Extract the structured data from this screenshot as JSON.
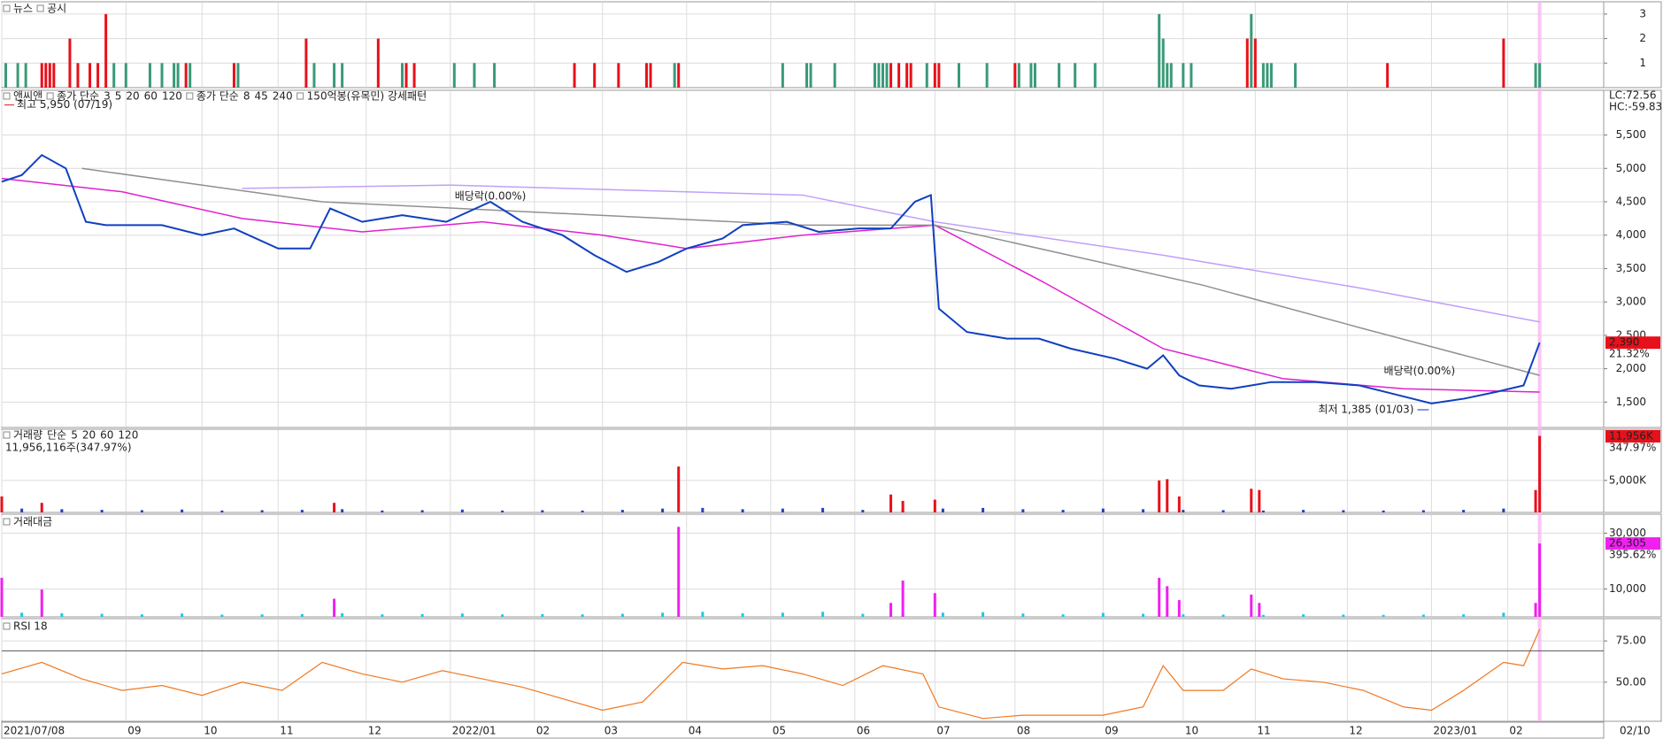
{
  "x_axis": {
    "xlim": [
      0,
      400
    ],
    "xticks": [
      {
        "value": 0,
        "label": "2021/07/08"
      },
      {
        "value": 31,
        "label": "09"
      },
      {
        "value": 50,
        "label": "10"
      },
      {
        "value": 69,
        "label": "11"
      },
      {
        "value": 91,
        "label": "12"
      },
      {
        "value": 112,
        "label": "2022/01"
      },
      {
        "value": 133,
        "label": "02"
      },
      {
        "value": 150,
        "label": "03"
      },
      {
        "value": 171,
        "label": "04"
      },
      {
        "value": 192,
        "label": "05"
      },
      {
        "value": 213,
        "label": "06"
      },
      {
        "value": 233,
        "label": "07"
      },
      {
        "value": 253,
        "label": "08"
      },
      {
        "value": 275,
        "label": "09"
      },
      {
        "value": 295,
        "label": "10"
      },
      {
        "value": 313,
        "label": "11"
      },
      {
        "value": 336,
        "label": "12"
      },
      {
        "value": 357,
        "label": "2023/01"
      },
      {
        "value": 376,
        "label": "02"
      }
    ],
    "current_date": "02/10"
  },
  "news_panel": {
    "ylim": [
      0,
      3.5
    ],
    "yticks": [
      1,
      2,
      3
    ],
    "series": [
      {
        "name": "뉴스",
        "color": "#3a9a78",
        "x": [
          1,
          4,
          6,
          28,
          31,
          37,
          40,
          43,
          44,
          47,
          59,
          78,
          83,
          85,
          100,
          113,
          118,
          123,
          168,
          195,
          201,
          202,
          208,
          218,
          219,
          220,
          221,
          231,
          239,
          246,
          254,
          257,
          258,
          264,
          268,
          273,
          289,
          290,
          291,
          292,
          295,
          297,
          312,
          315,
          316,
          317,
          323,
          383,
          384
        ],
        "values": [
          1,
          1,
          1,
          1,
          1,
          1,
          1,
          1,
          1,
          1,
          1,
          1,
          1,
          1,
          1,
          1,
          1,
          1,
          1,
          1,
          1,
          1,
          1,
          1,
          1,
          1,
          1,
          1,
          1,
          1,
          1,
          1,
          1,
          1,
          1,
          1,
          3,
          2,
          1,
          1,
          1,
          1,
          3,
          1,
          1,
          1,
          1,
          1,
          1
        ]
      },
      {
        "name": "공시",
        "color": "#e8101a",
        "x": [
          10,
          11,
          12,
          13,
          17,
          19,
          22,
          24,
          26,
          46,
          58,
          76,
          94,
          101,
          103,
          143,
          148,
          154,
          161,
          162,
          169,
          222,
          224,
          226,
          227,
          233,
          234,
          253,
          311,
          313,
          346,
          375
        ],
        "values": [
          1,
          1,
          1,
          1,
          2,
          1,
          1,
          1,
          3,
          1,
          1,
          2,
          2,
          1,
          1,
          1,
          1,
          1,
          1,
          1,
          1,
          1,
          1,
          1,
          1,
          1,
          1,
          1,
          2,
          2,
          1,
          2
        ]
      }
    ]
  },
  "price_panel": {
    "title": "앤씨앤",
    "legend": [
      {
        "label": "종가 단순",
        "items": [
          {
            "name": "3",
            "color": "#10106a"
          },
          {
            "name": "5",
            "color": "#1040d0"
          },
          {
            "name": "20",
            "color": "#e0a000"
          },
          {
            "name": "60",
            "color": "#20a040"
          },
          {
            "name": "120",
            "color": "#808080"
          }
        ]
      },
      {
        "label": "종가 단순",
        "items": [
          {
            "name": "8",
            "color": "#a01050"
          },
          {
            "name": "45",
            "color": "#e020d0"
          },
          {
            "name": "240",
            "color": "#b890f0"
          }
        ]
      }
    ],
    "pattern": "150억봉(유목민) 강세패턴",
    "lc": "LC:72.56",
    "hc": "HC:-59.83",
    "ylim": [
      1120,
      6170
    ],
    "yticks": [
      {
        "value": 1500,
        "label": "1,500"
      },
      {
        "value": 2000,
        "label": "2,000"
      },
      {
        "value": 2500,
        "label": "2,500"
      },
      {
        "value": 3000,
        "label": "3,000"
      },
      {
        "value": 3500,
        "label": "3,500"
      },
      {
        "value": 4000,
        "label": "4,000"
      },
      {
        "value": 4500,
        "label": "4,500"
      },
      {
        "value": 5000,
        "label": "5,000"
      },
      {
        "value": 5500,
        "label": "5,500"
      }
    ],
    "series": [
      {
        "color": "#1040c0",
        "x": [
          0,
          5,
          10,
          16,
          21,
          26,
          40,
          50,
          58,
          69,
          77,
          82,
          90,
          100,
          111,
          122,
          130,
          140,
          148,
          156,
          164,
          171,
          180,
          185,
          196,
          204,
          214,
          222,
          228,
          232,
          234,
          241,
          251,
          259,
          267,
          278,
          286,
          290,
          294,
          299,
          307,
          312,
          317,
          328,
          339,
          349,
          357,
          365,
          373,
          380,
          384
        ],
        "values": [
          4800,
          4900,
          5200,
          5000,
          4200,
          4150,
          4150,
          4000,
          4100,
          3800,
          3800,
          4400,
          4200,
          4300,
          4200,
          4500,
          4200,
          4000,
          3700,
          3450,
          3600,
          3800,
          3950,
          4150,
          4200,
          4050,
          4100,
          4100,
          4500,
          4600,
          2900,
          2550,
          2450,
          2450,
          2300,
          2150,
          2000,
          2200,
          1900,
          1750,
          1700,
          1750,
          1800,
          1800,
          1750,
          1600,
          1480,
          1550,
          1650,
          1750,
          2390
        ]
      },
      {
        "name": "240",
        "color": "#c0a0f8",
        "x": [
          60,
          112,
          200,
          233,
          290,
          340,
          384
        ],
        "values": [
          4700,
          4750,
          4600,
          4200,
          3700,
          3200,
          2700
        ]
      },
      {
        "name": "120",
        "color": "#909090",
        "x": [
          20,
          80,
          200,
          233,
          300,
          340,
          384
        ],
        "values": [
          5000,
          4500,
          4150,
          4150,
          3250,
          2600,
          1900
        ]
      },
      {
        "name": "45",
        "color": "#e020d0",
        "x": [
          0,
          30,
          60,
          90,
          120,
          150,
          171,
          200,
          233,
          260,
          290,
          320,
          350,
          384
        ],
        "values": [
          4850,
          4650,
          4250,
          4050,
          4200,
          4000,
          3800,
          4000,
          4150,
          3300,
          2300,
          1850,
          1700,
          1650
        ]
      }
    ],
    "annotations": [
      {
        "text": "최고 5,950 (07/19)",
        "x": 0,
        "y": 5950,
        "color": "#e8101a"
      },
      {
        "text": "최저 1,385 (01/03)",
        "x": 357,
        "y": 1385,
        "color": "#1030c0"
      },
      {
        "text": "배당락(0.00%)",
        "x": 122,
        "y": 4580,
        "color": "#222222"
      },
      {
        "text": "배당락(0.00%)",
        "x": 354,
        "y": 1960,
        "color": "#222222"
      }
    ],
    "last": {
      "value": 2390,
      "label": "2,390",
      "change": "21.32%"
    }
  },
  "volume_panel": {
    "title": "거래량",
    "kind": "단순",
    "legend": [
      {
        "name": "5",
        "color": "#e020d0"
      },
      {
        "name": "20",
        "color": "#e0a000"
      },
      {
        "name": "60",
        "color": "#20a040"
      },
      {
        "name": "120",
        "color": "#808080"
      }
    ],
    "info": "11,956,116주(347.97%)",
    "ylim": [
      0,
      13000
    ],
    "yticks": [
      {
        "value": 5000,
        "label": "5,000K"
      }
    ],
    "last": {
      "value": 11956,
      "label": "11,956K",
      "change": "347.97%"
    },
    "series": [
      {
        "color": "#2040c0",
        "x": [
          5,
          15,
          25,
          35,
          45,
          55,
          65,
          75,
          85,
          95,
          105,
          115,
          125,
          135,
          145,
          155,
          165,
          175,
          185,
          195,
          205,
          215,
          225,
          235,
          245,
          255,
          265,
          275,
          285,
          295,
          305,
          315,
          325,
          335,
          345,
          355,
          365,
          375
        ],
        "values": [
          600,
          500,
          400,
          350,
          450,
          300,
          350,
          400,
          500,
          300,
          350,
          450,
          300,
          350,
          300,
          400,
          600,
          700,
          500,
          600,
          700,
          400,
          500,
          600,
          700,
          500,
          400,
          600,
          500,
          400,
          350,
          300,
          400,
          350,
          300,
          350,
          400,
          600
        ]
      },
      {
        "color": "#e8101a",
        "x": [
          0,
          10,
          83,
          169,
          222,
          225,
          233,
          289,
          291,
          294,
          312,
          314,
          383,
          384
        ],
        "values": [
          2500,
          1500,
          1500,
          7170,
          2800,
          1800,
          2000,
          5000,
          5200,
          2500,
          3700,
          3500,
          3500,
          11956
        ]
      }
    ]
  },
  "amount_panel": {
    "title": "거래대금",
    "ylim": [
      0,
      36800
    ],
    "yticks": [
      {
        "value": 10000,
        "label": "10,000"
      },
      {
        "value": 30000,
        "label": "30,000"
      }
    ],
    "last": {
      "value": 26305,
      "label": "26,305",
      "change": "395.62%"
    },
    "series": [
      {
        "color": "#20c8e0",
        "x": [
          5,
          15,
          25,
          35,
          45,
          55,
          65,
          75,
          85,
          95,
          105,
          115,
          125,
          135,
          145,
          155,
          165,
          175,
          185,
          195,
          205,
          215,
          225,
          235,
          245,
          255,
          265,
          275,
          285,
          295,
          305,
          315,
          325,
          335,
          345,
          355,
          365,
          375
        ],
        "values": [
          1500,
          1300,
          1100,
          900,
          1200,
          800,
          900,
          1000,
          1300,
          900,
          1000,
          1200,
          900,
          1000,
          900,
          1100,
          1500,
          1800,
          1300,
          1500,
          1800,
          1100,
          1300,
          1500,
          1700,
          1200,
          900,
          1400,
          1100,
          900,
          800,
          700,
          900,
          800,
          700,
          800,
          900,
          1500
        ]
      },
      {
        "color": "#f020f0",
        "x": [
          0,
          10,
          83,
          169,
          222,
          225,
          233,
          289,
          291,
          294,
          312,
          314,
          383,
          384
        ],
        "values": [
          14000,
          9800,
          6500,
          32260,
          5000,
          13000,
          8500,
          14000,
          11000,
          6000,
          8000,
          5000,
          5000,
          26305
        ]
      }
    ]
  },
  "rsi_panel": {
    "title": "RSI 18",
    "ylim": [
      26.3,
      88.5
    ],
    "yticks": [
      {
        "value": 50,
        "label": "50.00"
      },
      {
        "value": 75,
        "label": "75.00"
      }
    ],
    "signal_line": 69,
    "series": [
      {
        "color": "#f07820",
        "x": [
          0,
          10,
          20,
          30,
          40,
          50,
          60,
          70,
          80,
          90,
          100,
          110,
          120,
          130,
          140,
          150,
          160,
          170,
          180,
          190,
          200,
          210,
          220,
          230,
          234,
          245,
          255,
          265,
          275,
          285,
          290,
          295,
          305,
          312,
          320,
          330,
          340,
          350,
          357,
          365,
          375,
          380,
          384
        ],
        "values": [
          55,
          62,
          52,
          45,
          48,
          42,
          50,
          45,
          62,
          55,
          50,
          57,
          52,
          47,
          40,
          33,
          38,
          62,
          58,
          60,
          55,
          48,
          60,
          55,
          35,
          28,
          30,
          30,
          30,
          35,
          60,
          45,
          45,
          58,
          52,
          50,
          45,
          35,
          33,
          45,
          62,
          60,
          82
        ]
      }
    ]
  }
}
